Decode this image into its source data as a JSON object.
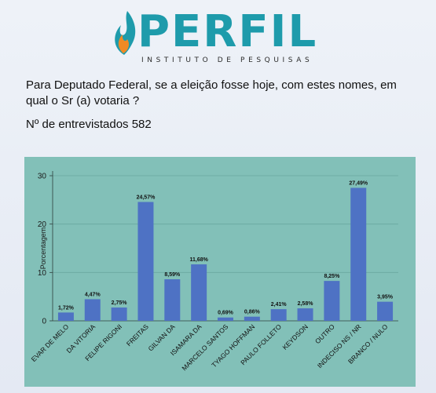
{
  "logo": {
    "name": "PERFIL",
    "subtitle": "INSTITUTO DE PESQUISAS"
  },
  "question": "Para Deputado Federal, se a eleição fosse hoje, com estes nomes, em qual o Sr (a) votaria ?",
  "respondents": "Nº de entrevistados 582",
  "colors": {
    "chart_background": "#82c0b8",
    "bar": "#4e72c4",
    "logo_teal": "#1e9bab",
    "logo_orange": "#f08a24"
  },
  "chart_data": {
    "type": "bar",
    "categories": [
      "EVAR DE MELO",
      "DA VITORIA",
      "FELIPE RIGONI",
      "FREITAS",
      "GILVAN DA",
      "ISAMARA DA",
      "MARCELO SANTOS",
      "TYAGO HOFFMAN",
      "PAULO FOLLETO",
      "KEYDSON",
      "OUTRO",
      "INDECISO NS / NR",
      "BRANCO / NULO"
    ],
    "values": [
      1.72,
      4.47,
      2.75,
      24.57,
      8.59,
      11.68,
      0.69,
      0.86,
      2.41,
      2.58,
      8.25,
      27.49,
      3.95
    ],
    "labels": [
      "1,72%",
      "4,47%",
      "2,75%",
      "24,57%",
      "8,59%",
      "11,68%",
      "0,69%",
      "0,86%",
      "2,41%",
      "2,58%",
      "8,25%",
      "27,49%",
      "3,95%"
    ],
    "yticks": [
      "0",
      "10",
      "20",
      "30"
    ],
    "ylabel": "Porcentagem",
    "ylim": [
      0,
      30
    ],
    "grid": true
  }
}
